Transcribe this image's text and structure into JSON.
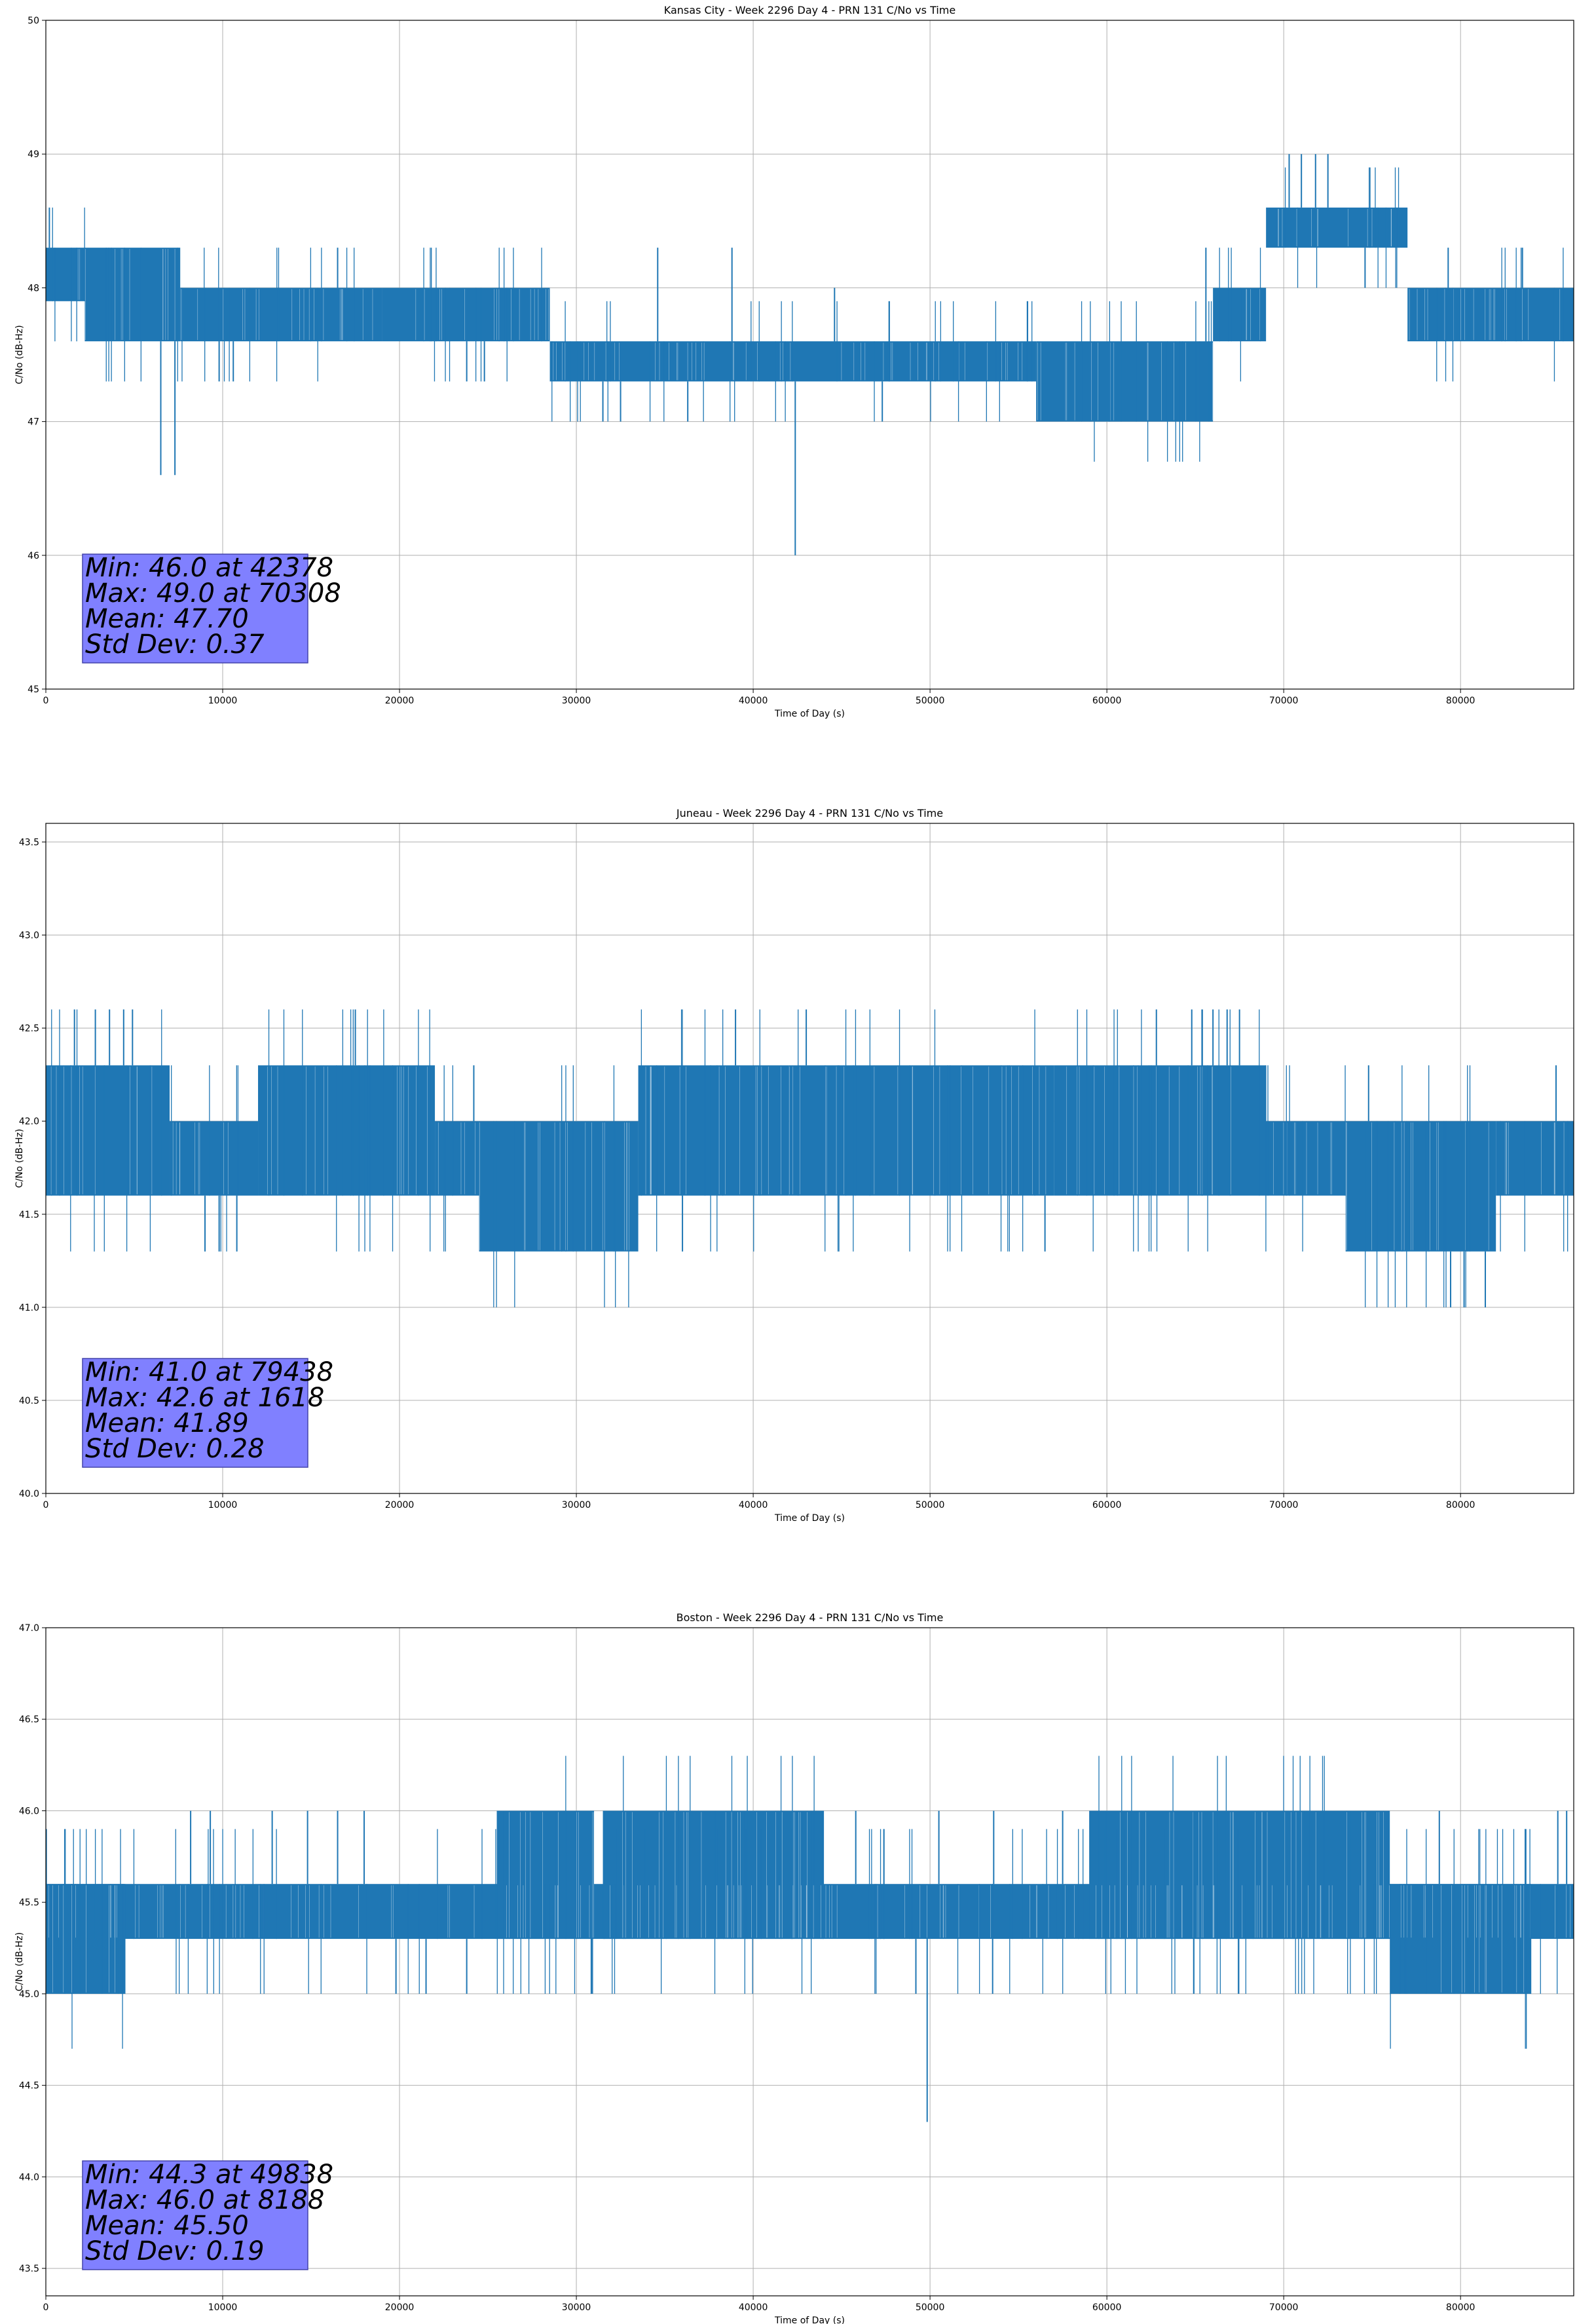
{
  "figure": {
    "background": "#ffffff"
  },
  "style": {
    "line_color": "#1f77b4",
    "grid_color": "#b0b0b0",
    "stats_box_fill": "#8080ff",
    "stats_box_edge": "#4444aa"
  },
  "chart_data": [
    {
      "type": "line",
      "title": "Kansas City - Week 2296 Day 4 - PRN 131 C/No vs Time",
      "xlabel": "Time of Day (s)",
      "ylabel": "C/No (dB-Hz)",
      "xlim": [
        0,
        86400
      ],
      "ylim": [
        45,
        50
      ],
      "xticks": [
        0,
        10000,
        20000,
        30000,
        40000,
        50000,
        60000,
        70000,
        80000
      ],
      "yticks": [
        45,
        46,
        47,
        48,
        49,
        50
      ],
      "ytick_labels": [
        "45",
        "46",
        "47",
        "48",
        "49",
        "50"
      ],
      "grid": true,
      "series": [
        {
          "color": "#1f77b4",
          "segments": [
            {
              "x0": 0,
              "x1": 2200,
              "lo": 47.9,
              "hi": 48.3
            },
            {
              "x0": 2200,
              "x1": 7600,
              "lo": 47.6,
              "hi": 48.3
            },
            {
              "x0": 7600,
              "x1": 19000,
              "lo": 47.6,
              "hi": 48.0
            },
            {
              "x0": 19000,
              "x1": 28500,
              "lo": 47.6,
              "hi": 48.0
            },
            {
              "x0": 28500,
              "x1": 56000,
              "lo": 47.3,
              "hi": 47.6
            },
            {
              "x0": 56000,
              "x1": 66000,
              "lo": 47.0,
              "hi": 47.6
            },
            {
              "x0": 66000,
              "x1": 69000,
              "lo": 47.6,
              "hi": 48.0
            },
            {
              "x0": 69000,
              "x1": 77000,
              "lo": 48.3,
              "hi": 48.6
            },
            {
              "x0": 77000,
              "x1": 86400,
              "lo": 47.6,
              "hi": 48.0
            }
          ],
          "spikes": [
            {
              "x": 200,
              "y": 48.6
            },
            {
              "x": 6500,
              "y": 46.6
            },
            {
              "x": 7300,
              "y": 46.6
            },
            {
              "x": 9800,
              "y": 47.3
            },
            {
              "x": 10600,
              "y": 47.3
            },
            {
              "x": 16500,
              "y": 48.3
            },
            {
              "x": 23800,
              "y": 47.3
            },
            {
              "x": 24800,
              "y": 47.3
            },
            {
              "x": 31500,
              "y": 47.0
            },
            {
              "x": 32500,
              "y": 47.0
            },
            {
              "x": 34600,
              "y": 48.3
            },
            {
              "x": 36300,
              "y": 47.0
            },
            {
              "x": 38800,
              "y": 48.3
            },
            {
              "x": 42378,
              "y": 46.0
            },
            {
              "x": 43000,
              "y": 47.3
            },
            {
              "x": 44600,
              "y": 48.0
            },
            {
              "x": 47300,
              "y": 47.0
            },
            {
              "x": 65600,
              "y": 48.3
            },
            {
              "x": 70308,
              "y": 49.0
            },
            {
              "x": 71000,
              "y": 49.0
            },
            {
              "x": 71800,
              "y": 49.0
            },
            {
              "x": 72500,
              "y": 49.0
            },
            {
              "x": 74600,
              "y": 48.0
            },
            {
              "x": 79300,
              "y": 48.3
            },
            {
              "x": 83500,
              "y": 48.3
            }
          ]
        }
      ],
      "stats": [
        "Min: 46.0 at 42378",
        "Max: 49.0 at 70308",
        "Mean: 47.70",
        "Std Dev: 0.37"
      ]
    },
    {
      "type": "line",
      "title": "Juneau - Week 2296 Day 4 - PRN 131 C/No vs Time",
      "xlabel": "Time of Day (s)",
      "ylabel": "C/No (dB-Hz)",
      "xlim": [
        0,
        86400
      ],
      "ylim": [
        40.0,
        43.6
      ],
      "xticks": [
        0,
        10000,
        20000,
        30000,
        40000,
        50000,
        60000,
        70000,
        80000
      ],
      "yticks": [
        40.0,
        40.5,
        41.0,
        41.5,
        42.0,
        42.5,
        43.0,
        43.5
      ],
      "ytick_labels": [
        "40.0",
        "40.5",
        "41.0",
        "41.5",
        "42.0",
        "42.5",
        "43.0",
        "43.5"
      ],
      "grid": true,
      "series": [
        {
          "color": "#1f77b4",
          "segments": [
            {
              "x0": 0,
              "x1": 7000,
              "lo": 41.6,
              "hi": 42.3
            },
            {
              "x0": 7000,
              "x1": 12000,
              "lo": 41.6,
              "hi": 42.0
            },
            {
              "x0": 12000,
              "x1": 22000,
              "lo": 41.6,
              "hi": 42.3
            },
            {
              "x0": 22000,
              "x1": 24500,
              "lo": 41.6,
              "hi": 42.0
            },
            {
              "x0": 24500,
              "x1": 33500,
              "lo": 41.3,
              "hi": 42.0
            },
            {
              "x0": 33500,
              "x1": 42000,
              "lo": 41.6,
              "hi": 42.3
            },
            {
              "x0": 42000,
              "x1": 57000,
              "lo": 41.6,
              "hi": 42.3
            },
            {
              "x0": 57000,
              "x1": 69000,
              "lo": 41.6,
              "hi": 42.3
            },
            {
              "x0": 69000,
              "x1": 73500,
              "lo": 41.6,
              "hi": 42.0
            },
            {
              "x0": 73500,
              "x1": 82000,
              "lo": 41.3,
              "hi": 42.0
            },
            {
              "x0": 82000,
              "x1": 86400,
              "lo": 41.6,
              "hi": 42.0
            }
          ],
          "spikes": [
            {
              "x": 1618,
              "y": 42.6
            },
            {
              "x": 2800,
              "y": 42.6
            },
            {
              "x": 3600,
              "y": 42.6
            },
            {
              "x": 4400,
              "y": 42.6
            },
            {
              "x": 4900,
              "y": 42.6
            },
            {
              "x": 9000,
              "y": 41.3
            },
            {
              "x": 9800,
              "y": 41.3
            },
            {
              "x": 10800,
              "y": 41.3
            },
            {
              "x": 17500,
              "y": 42.6
            },
            {
              "x": 24200,
              "y": 42.3
            },
            {
              "x": 36000,
              "y": 41.3
            },
            {
              "x": 39000,
              "y": 42.6
            },
            {
              "x": 43000,
              "y": 42.6
            },
            {
              "x": 56500,
              "y": 41.3
            },
            {
              "x": 62800,
              "y": 42.6
            },
            {
              "x": 64800,
              "y": 42.6
            },
            {
              "x": 66000,
              "y": 42.6
            },
            {
              "x": 66800,
              "y": 42.6
            },
            {
              "x": 67500,
              "y": 42.6
            },
            {
              "x": 74800,
              "y": 42.3
            },
            {
              "x": 79438,
              "y": 41.0
            },
            {
              "x": 80200,
              "y": 41.0
            },
            {
              "x": 81400,
              "y": 41.0
            },
            {
              "x": 85400,
              "y": 42.3
            }
          ]
        }
      ],
      "stats": [
        "Min: 41.0 at 79438",
        "Max: 42.6 at 1618",
        "Mean: 41.89",
        "Std Dev: 0.28"
      ]
    },
    {
      "type": "line",
      "title": "Boston - Week 2296 Day 4 - PRN 131 C/No vs Time",
      "xlabel": "Time of Day (s)",
      "ylabel": "C/No (dB-Hz)",
      "xlim": [
        0,
        86400
      ],
      "ylim": [
        43.35,
        47.0
      ],
      "xticks": [
        0,
        10000,
        20000,
        30000,
        40000,
        50000,
        60000,
        70000,
        80000
      ],
      "yticks": [
        43.5,
        44.0,
        44.5,
        45.0,
        45.5,
        46.0,
        46.5,
        47.0
      ],
      "ytick_labels": [
        "43.5",
        "44.0",
        "44.5",
        "45.0",
        "45.5",
        "46.0",
        "46.5",
        "47.0"
      ],
      "grid": true,
      "series": [
        {
          "color": "#1f77b4",
          "segments": [
            {
              "x0": 0,
              "x1": 86400,
              "lo": 45.3,
              "hi": 45.6
            },
            {
              "x0": 0,
              "x1": 4500,
              "lo": 45.0,
              "hi": 45.6
            },
            {
              "x0": 25500,
              "x1": 31000,
              "lo": 45.3,
              "hi": 46.0
            },
            {
              "x0": 31500,
              "x1": 44000,
              "lo": 45.3,
              "hi": 46.0
            },
            {
              "x0": 59000,
              "x1": 76000,
              "lo": 45.3,
              "hi": 46.0
            },
            {
              "x0": 76000,
              "x1": 84000,
              "lo": 45.0,
              "hi": 45.6
            }
          ],
          "spikes": [
            {
              "x": 8188,
              "y": 46.0
            },
            {
              "x": 9300,
              "y": 46.0
            },
            {
              "x": 12800,
              "y": 46.0
            },
            {
              "x": 14800,
              "y": 46.0
            },
            {
              "x": 16500,
              "y": 46.0
            },
            {
              "x": 18000,
              "y": 46.0
            },
            {
              "x": 19800,
              "y": 45.0
            },
            {
              "x": 21500,
              "y": 45.0
            },
            {
              "x": 23800,
              "y": 45.0
            },
            {
              "x": 45800,
              "y": 46.0
            },
            {
              "x": 49200,
              "y": 45.0
            },
            {
              "x": 49838,
              "y": 44.3
            },
            {
              "x": 50500,
              "y": 46.0
            },
            {
              "x": 53600,
              "y": 46.0
            },
            {
              "x": 57500,
              "y": 46.0
            },
            {
              "x": 78800,
              "y": 46.0
            },
            {
              "x": 85500,
              "y": 46.0
            },
            {
              "x": 86000,
              "y": 46.0
            }
          ]
        }
      ],
      "stats": [
        "Min: 44.3 at 49838",
        "Max: 46.0 at 8188",
        "Mean: 45.50",
        "Std Dev: 0.19"
      ]
    }
  ]
}
